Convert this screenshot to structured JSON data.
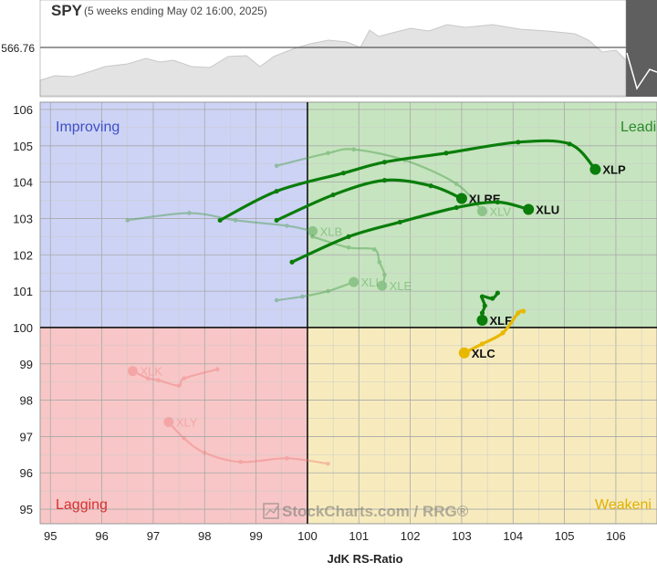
{
  "header": {
    "symbol": "SPY",
    "period": "(5 weeks ending May 02 16:00, 2025)",
    "price_label": "566.76"
  },
  "chart_data": {
    "type": "rrg",
    "benchmark": "SPY",
    "xlabel": "JdK RS-Ratio",
    "ylabel": "",
    "xlim": [
      94.8,
      106.8
    ],
    "ylim": [
      94.6,
      106.2
    ],
    "x_ticks": [
      "95",
      "96",
      "97",
      "98",
      "99",
      "100",
      "101",
      "102",
      "103",
      "104",
      "105",
      "106"
    ],
    "y_ticks": [
      "95",
      "96",
      "97",
      "98",
      "99",
      "100",
      "101",
      "102",
      "103",
      "104",
      "105",
      "106"
    ],
    "center": [
      100,
      100
    ],
    "quadrants": {
      "improving": "Improving",
      "leading": "Leadi",
      "lagging": "Lagging",
      "weakening": "Weakeni"
    },
    "colors": {
      "improving_bg": "#cdd3f5",
      "leading_bg": "#c6e4bf",
      "lagging_bg": "#f8c6c6",
      "weakening_bg": "#f7ebbd",
      "improving_text": "#3f4fc8",
      "leading_text": "#2a8a2a",
      "lagging_text": "#d83030",
      "weakening_text": "#e0b000",
      "leading_series": "#0a7d0a",
      "weakening_series": "#e8b800"
    },
    "series": [
      {
        "name": "XLP",
        "emphasis": "strong",
        "color": "#0a7d0a",
        "points": [
          [
            98.3,
            102.95
          ],
          [
            99.4,
            103.75
          ],
          [
            100.7,
            104.25
          ],
          [
            101.5,
            104.55
          ],
          [
            102.7,
            104.8
          ],
          [
            104.1,
            105.1
          ],
          [
            105.1,
            105.05
          ],
          [
            105.6,
            104.35
          ]
        ]
      },
      {
        "name": "XLRE",
        "emphasis": "strong",
        "color": "#0a7d0a",
        "points": [
          [
            99.4,
            102.95
          ],
          [
            100.5,
            103.65
          ],
          [
            101.5,
            104.05
          ],
          [
            102.4,
            103.9
          ],
          [
            103.0,
            103.55
          ]
        ]
      },
      {
        "name": "XLU",
        "emphasis": "strong",
        "color": "#0a7d0a",
        "points": [
          [
            99.7,
            101.8
          ],
          [
            100.8,
            102.5
          ],
          [
            101.8,
            102.9
          ],
          [
            102.9,
            103.3
          ],
          [
            103.7,
            103.45
          ],
          [
            104.3,
            103.25
          ]
        ]
      },
      {
        "name": "XLF",
        "emphasis": "strong",
        "color": "#0a7d0a",
        "points": [
          [
            103.7,
            100.95
          ],
          [
            103.6,
            100.8
          ],
          [
            103.4,
            100.85
          ],
          [
            103.45,
            100.6
          ],
          [
            103.4,
            100.4
          ],
          [
            103.4,
            100.2
          ]
        ]
      },
      {
        "name": "XLC",
        "emphasis": "strong",
        "color": "#e8b800",
        "points": [
          [
            104.2,
            100.45
          ],
          [
            104.1,
            100.4
          ],
          [
            103.8,
            99.85
          ],
          [
            103.4,
            99.55
          ],
          [
            103.05,
            99.3
          ]
        ]
      },
      {
        "name": "XLV",
        "emphasis": "faded",
        "color": "#3f9a3f",
        "points": [
          [
            99.4,
            104.45
          ],
          [
            100.4,
            104.8
          ],
          [
            100.9,
            104.9
          ],
          [
            101.9,
            104.6
          ],
          [
            102.9,
            103.95
          ],
          [
            103.4,
            103.2
          ]
        ]
      },
      {
        "name": "XLB",
        "emphasis": "faded",
        "color": "#3f9a3f",
        "points": [
          [
            96.5,
            102.95
          ],
          [
            97.7,
            103.15
          ],
          [
            98.6,
            102.95
          ],
          [
            99.6,
            102.8
          ],
          [
            100.1,
            102.65
          ]
        ]
      },
      {
        "name": "XLI",
        "emphasis": "faded",
        "color": "#3f9a3f",
        "points": [
          [
            99.4,
            100.75
          ],
          [
            99.9,
            100.85
          ],
          [
            100.4,
            101.0
          ],
          [
            100.9,
            101.25
          ]
        ]
      },
      {
        "name": "XLE",
        "emphasis": "faded",
        "color": "#3f9a3f",
        "points": [
          [
            100.1,
            102.5
          ],
          [
            100.8,
            102.2
          ],
          [
            101.3,
            102.15
          ],
          [
            101.4,
            101.8
          ],
          [
            101.5,
            101.45
          ],
          [
            101.45,
            101.15
          ]
        ]
      },
      {
        "name": "XLK",
        "emphasis": "faded",
        "color": "#f07a7a",
        "points": [
          [
            98.25,
            98.85
          ],
          [
            97.6,
            98.6
          ],
          [
            97.5,
            98.4
          ],
          [
            97.1,
            98.55
          ],
          [
            96.9,
            98.6
          ],
          [
            96.6,
            98.8
          ]
        ]
      },
      {
        "name": "XLY",
        "emphasis": "faded",
        "color": "#f07a7a",
        "points": [
          [
            100.4,
            96.25
          ],
          [
            99.6,
            96.4
          ],
          [
            98.7,
            96.3
          ],
          [
            98.0,
            96.55
          ],
          [
            97.6,
            96.95
          ],
          [
            97.3,
            97.4
          ]
        ]
      }
    ]
  },
  "watermark": {
    "text": "StockCharts.com / RRG®"
  }
}
